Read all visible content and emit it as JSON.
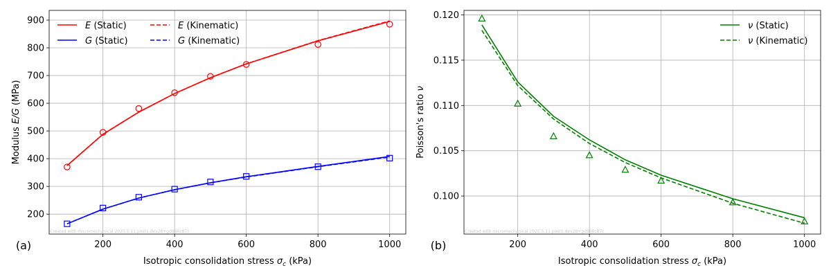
{
  "chart_data": [
    {
      "type": "line",
      "panel_label": "(a)",
      "xlabel_prefix": "Isotropic consolidation stress ",
      "xlabel_sym": "σ",
      "xlabel_sub": "c",
      "xlabel_suffix": " (kPa)",
      "ylabel_prefix": "Modulus ",
      "ylabel_sym": "E/G",
      "ylabel_suffix": " (MPa)",
      "xlim": [
        50,
        1045
      ],
      "ylim": [
        128,
        935
      ],
      "xticks": [
        200,
        400,
        600,
        800,
        1000
      ],
      "yticks": [
        200,
        300,
        400,
        500,
        600,
        700,
        800,
        900
      ],
      "grid": true,
      "legend_position": "top-left",
      "watermark": "Created with micromechanical 2025.5.11.post1.dev28+gd966c87c",
      "x": [
        100,
        200,
        300,
        400,
        500,
        600,
        800,
        1000
      ],
      "series": [
        {
          "name": "E (Static)",
          "sym": "E",
          "label": " (Static)",
          "color": "#ff0000",
          "dash": false,
          "values": [
            375,
            488,
            568,
            635,
            692,
            742,
            825,
            895
          ]
        },
        {
          "name": "E (Kinematic)",
          "sym": "E",
          "label": " (Kinematic)",
          "color": "#ff0000",
          "dash": true,
          "values": [
            375,
            488,
            568,
            635,
            692,
            742,
            826,
            897
          ]
        },
        {
          "name": "G (Static)",
          "sym": "G",
          "label": " (Static)",
          "color": "#0000ff",
          "dash": false,
          "values": [
            165,
            218,
            258,
            288,
            313,
            335,
            372,
            408
          ]
        },
        {
          "name": "G (Kinematic)",
          "sym": "G",
          "label": " (Kinematic)",
          "color": "#0000ff",
          "dash": true,
          "values": [
            165,
            218,
            258,
            288,
            313,
            334,
            371,
            406
          ]
        }
      ],
      "markers": [
        {
          "series": "E data",
          "shape": "circle",
          "color": "#ff0000",
          "values": [
            370,
            495,
            581,
            638,
            697,
            740,
            812,
            885
          ]
        },
        {
          "series": "G data",
          "shape": "square",
          "color": "#0000ff",
          "values": [
            165,
            222,
            261,
            290,
            316,
            336,
            371,
            402
          ]
        }
      ]
    },
    {
      "type": "line",
      "panel_label": "(b)",
      "xlabel_prefix": "Isotropic consolidation stress ",
      "xlabel_sym": "σ",
      "xlabel_sub": "c",
      "xlabel_suffix": " (kPa)",
      "ylabel_prefix": "Poisson's ratio ",
      "ylabel_sym": "ν",
      "ylabel_suffix": "",
      "xlim": [
        50,
        1045
      ],
      "ylim": [
        0.0958,
        0.1205
      ],
      "xticks": [
        200,
        400,
        600,
        800,
        1000
      ],
      "yticks": [
        0.1,
        0.105,
        0.11,
        0.115,
        0.12
      ],
      "ytick_labels": [
        "0.100",
        "0.105",
        "0.110",
        "0.115",
        "0.120"
      ],
      "grid": true,
      "legend_position": "top-right",
      "watermark": "Created with micromechanical 2025.5.11.post1.dev28+gd966c87c",
      "x": [
        100,
        200,
        300,
        400,
        500,
        600,
        800,
        1000
      ],
      "series": [
        {
          "name": "ν (Static)",
          "sym": "ν",
          "label": " (Static)",
          "color": "#008000",
          "dash": false,
          "values": [
            0.1189,
            0.1126,
            0.1088,
            0.1062,
            0.104,
            0.1023,
            0.0997,
            0.0976
          ]
        },
        {
          "name": "ν (Kinematic)",
          "sym": "ν",
          "label": " (Kinematic)",
          "color": "#008000",
          "dash": true,
          "values": [
            0.1183,
            0.1122,
            0.1085,
            0.1058,
            0.1037,
            0.102,
            0.0992,
            0.097
          ]
        }
      ],
      "markers": [
        {
          "series": "ν data",
          "shape": "triangle",
          "color": "#008000",
          "values": [
            0.1196,
            0.1102,
            0.1066,
            0.1045,
            0.1029,
            0.1017,
            0.0993,
            0.0972
          ]
        }
      ]
    }
  ]
}
